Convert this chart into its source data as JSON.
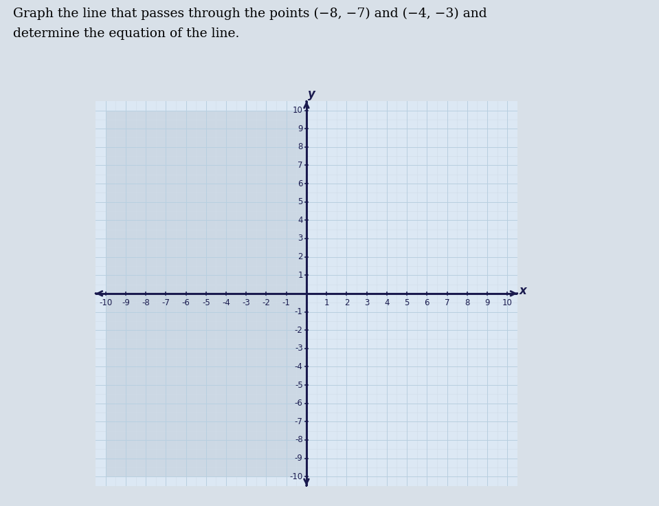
{
  "xmin": -10,
  "xmax": 10,
  "ymin": -10,
  "ymax": 10,
  "grid_color": "#b8cfe0",
  "grid_minor_color": "#d0dce8",
  "axis_color": "#1a1a4e",
  "tick_label_color": "#1a1a4e",
  "background_color": "#d8e0e8",
  "plot_bg_left_color": "#ccd8e4",
  "plot_bg_right_color": "#dce8f4",
  "tick_fontsize": 8.5,
  "axis_label_fontsize": 12,
  "title_line1": "Graph the line that passes through the points –8, –7) and (–4, –3) and",
  "title_line2": "determine the equation of the line.",
  "point1": [
    -8,
    -7
  ],
  "point2": [
    -4,
    -3
  ]
}
